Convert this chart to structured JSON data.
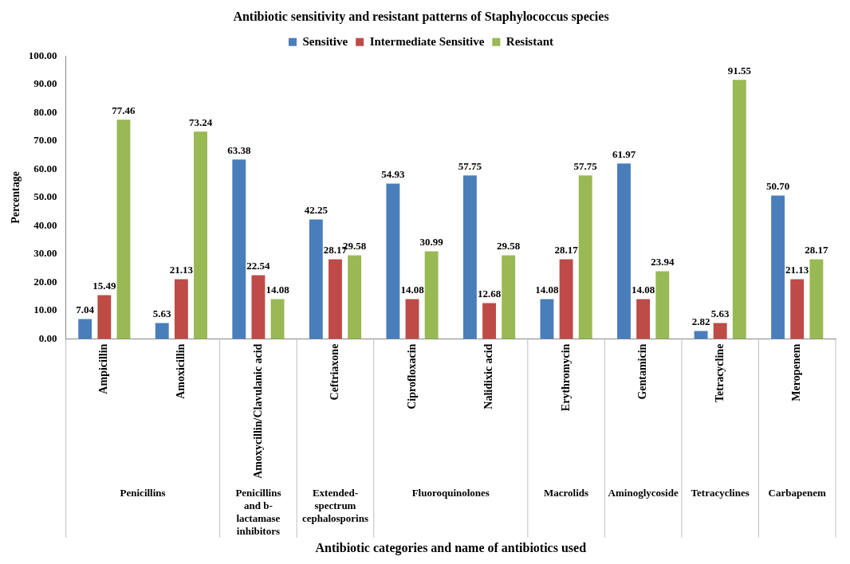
{
  "chart_data": {
    "type": "bar",
    "title": "Antibiotic sensitivity and resistant patterns of Staphylococcus species",
    "xlabel": "Antibiotic categories and name of antibiotics used",
    "ylabel": "Percentage",
    "categories": [
      "Ampicillin",
      "Amoxicillin",
      "Amoxycillin/Clavulanic acid",
      "Ceftriaxone",
      "Ciprofloxacin",
      "Nalidixic acid",
      "Erythromycin",
      "Gentamicin",
      "Tetracycline",
      "Meropenem"
    ],
    "series": [
      {
        "name": "Sensitive",
        "color": "#4a7ebb",
        "values": [
          7.04,
          5.63,
          63.38,
          42.25,
          54.93,
          57.75,
          14.08,
          61.97,
          2.82,
          50.7
        ],
        "value_labels": [
          "7.04",
          "5.63",
          "63.38",
          "42.25",
          "54.93",
          "57.75",
          "14.08",
          "61.97",
          "2.82",
          "50.70"
        ]
      },
      {
        "name": "Intermediate Sensitive",
        "color": "#be4b48",
        "values": [
          15.49,
          21.13,
          22.54,
          28.17,
          14.08,
          12.68,
          28.17,
          14.08,
          5.63,
          21.13
        ],
        "value_labels": [
          "15.49",
          "21.13",
          "22.54",
          "28.17",
          "14.08",
          "12.68",
          "28.17",
          "14.08",
          "5.63",
          "21.13"
        ]
      },
      {
        "name": "Resistant",
        "color": "#98b954",
        "values": [
          77.46,
          73.24,
          14.08,
          29.58,
          30.99,
          29.58,
          57.75,
          23.94,
          91.55,
          28.17
        ],
        "value_labels": [
          "77.46",
          "73.24",
          "14.08",
          "29.58",
          "30.99",
          "29.58",
          "57.75",
          "23.94",
          "91.55",
          "28.17"
        ]
      }
    ],
    "ylim": [
      0,
      100
    ],
    "yticks": [
      {
        "value": 0,
        "label": "0.00"
      },
      {
        "value": 10,
        "label": "10.00"
      },
      {
        "value": 20,
        "label": "20.00"
      },
      {
        "value": 30,
        "label": "30.00"
      },
      {
        "value": 40,
        "label": "40.00"
      },
      {
        "value": 50,
        "label": "50.00"
      },
      {
        "value": 60,
        "label": "60.00"
      },
      {
        "value": 70,
        "label": "70.00"
      },
      {
        "value": 80,
        "label": "80.00"
      },
      {
        "value": 90,
        "label": "90.00"
      },
      {
        "value": 100,
        "label": "100.00"
      }
    ],
    "annotations": [
      "Penicillins",
      "Penicillins and b-lactamase inhibitors",
      "Extended-spectrum cephalosporins",
      "Fluoroquinolones",
      "Macrolids",
      "Aminoglycoside",
      "Tetracyclines",
      "Carbapenem"
    ],
    "grid": false,
    "legend": "top"
  }
}
